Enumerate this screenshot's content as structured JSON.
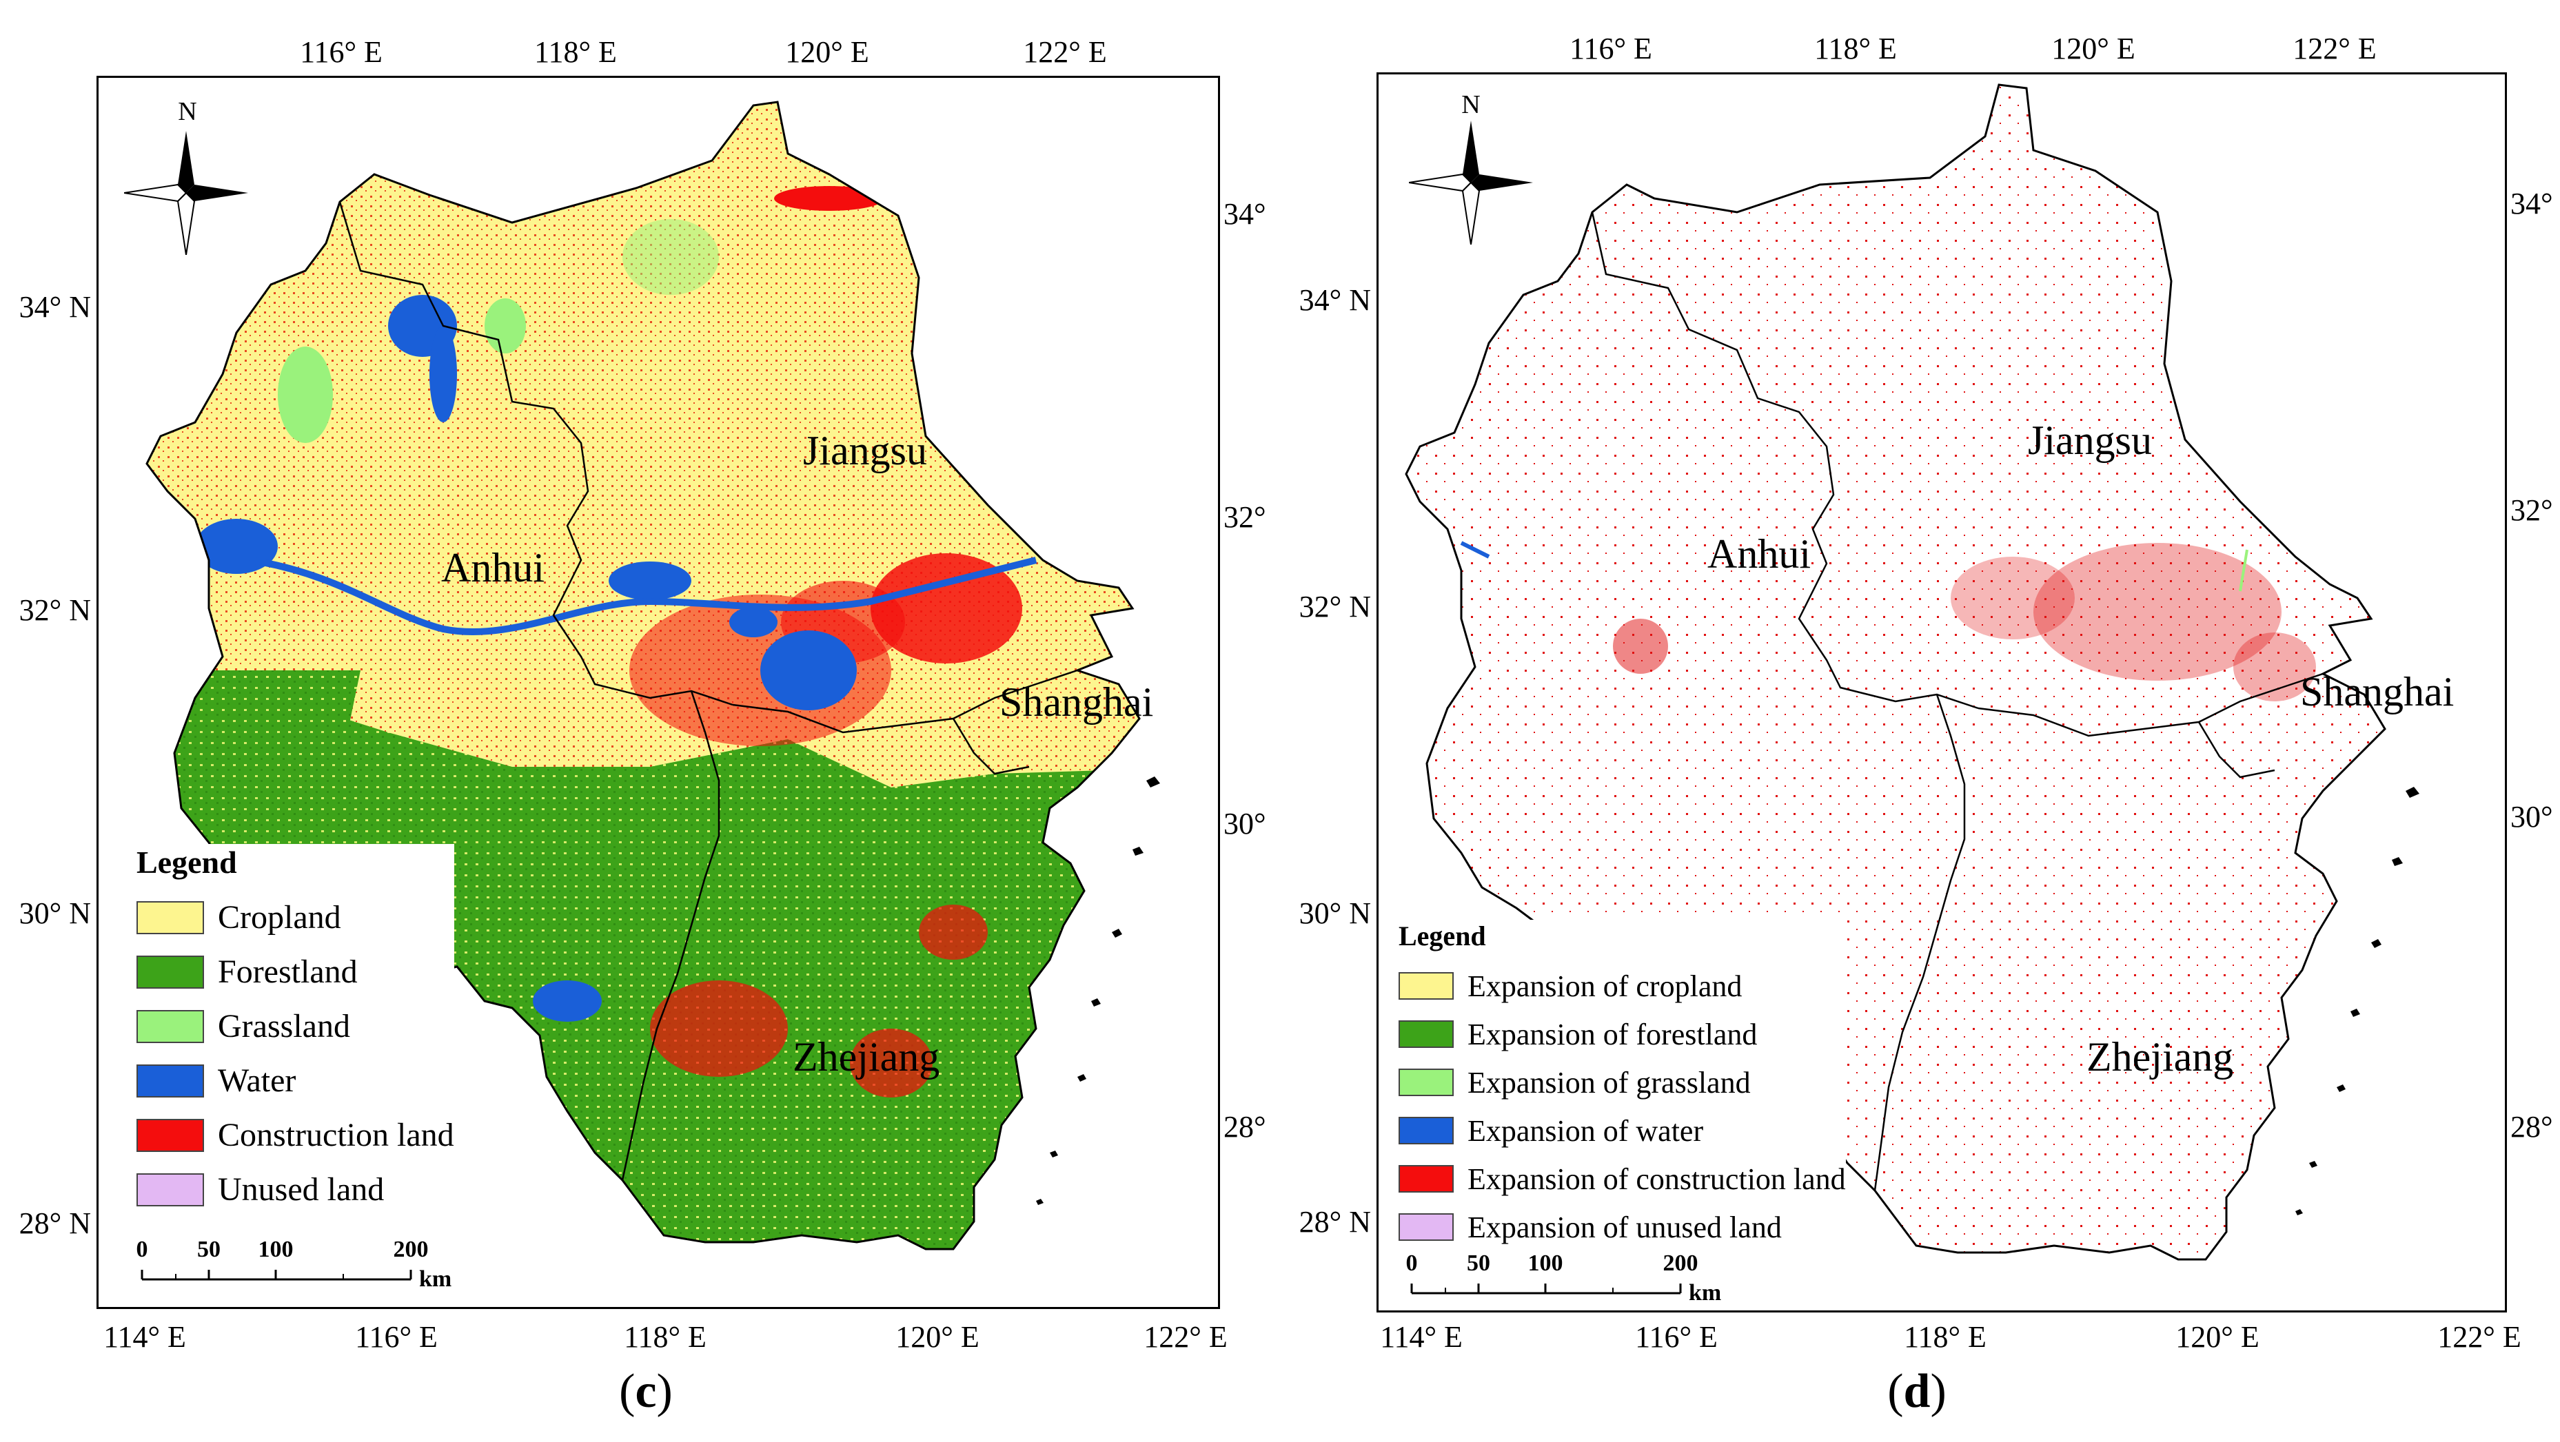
{
  "panel_c": {
    "top_ticks": [
      "116° E",
      "118° E",
      "120° E",
      "122° E"
    ],
    "bottom_ticks": [
      "114° E",
      "116° E",
      "118° E",
      "120° E",
      "122° E"
    ],
    "left_ticks": [
      "34° N",
      "32° N",
      "30° N",
      "28° N"
    ],
    "right_ticks": [
      "34°",
      "32°",
      "30°",
      "28°"
    ],
    "regions": {
      "jiangsu": "Jiangsu",
      "anhui": "Anhui",
      "shanghai": "Shanghai",
      "zhejiang": "Zhejiang"
    },
    "legend": {
      "title": "Legend",
      "items": [
        {
          "label": "Cropland",
          "color": "#fdf58f"
        },
        {
          "label": "Forestland",
          "color": "#3da319"
        },
        {
          "label": "Grassland",
          "color": "#9af27c"
        },
        {
          "label": "Water",
          "color": "#1a5fd8"
        },
        {
          "label": "Construction land",
          "color": "#f40d0d"
        },
        {
          "label": "Unused land",
          "color": "#e3b8f3"
        }
      ]
    },
    "scale": {
      "labels": [
        "0",
        "50",
        "100",
        "200"
      ],
      "unit": "km"
    },
    "north": "N",
    "caption_open": "(",
    "caption_letter": "c",
    "caption_close": ")"
  },
  "panel_d": {
    "top_ticks": [
      "116° E",
      "118° E",
      "120° E",
      "122° E"
    ],
    "bottom_ticks": [
      "114° E",
      "116° E",
      "118° E",
      "120° E",
      "122° E"
    ],
    "left_ticks": [
      "34° N",
      "32° N",
      "30° N",
      "28° N"
    ],
    "right_ticks": [
      "34°",
      "32°",
      "30°",
      "28°"
    ],
    "regions": {
      "jiangsu": "Jiangsu",
      "anhui": "Anhui",
      "shanghai": "Shanghai",
      "zhejiang": "Zhejiang"
    },
    "legend": {
      "title": "Legend",
      "items": [
        {
          "label": "Expansion of cropland",
          "color": "#fdf58f"
        },
        {
          "label": "Expansion of forestland",
          "color": "#3da319"
        },
        {
          "label": "Expansion of grassland",
          "color": "#9af27c"
        },
        {
          "label": "Expansion of water",
          "color": "#1a5fd8"
        },
        {
          "label": "Expansion of construction land",
          "color": "#f40d0d"
        },
        {
          "label": "Expansion of unused land",
          "color": "#e3b8f3"
        }
      ]
    },
    "scale": {
      "labels": [
        "0",
        "50",
        "100",
        "200"
      ],
      "unit": "km"
    },
    "north": "N",
    "caption_open": "(",
    "caption_letter": "d",
    "caption_close": ")"
  }
}
